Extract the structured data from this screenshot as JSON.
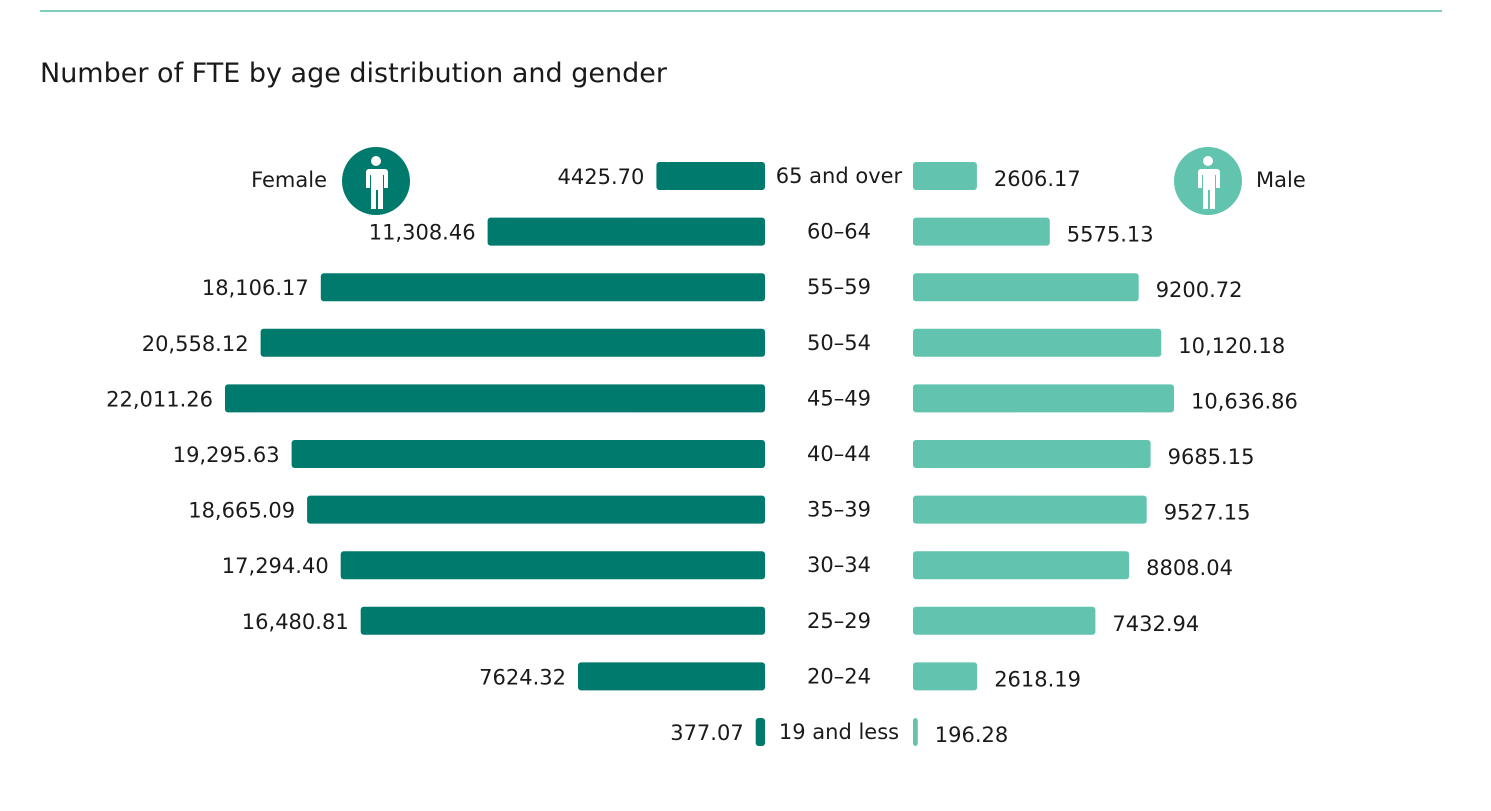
{
  "chart_data": {
    "type": "bar",
    "orientation": "horizontal-butterfly",
    "title": "Number of FTE by age distribution and gender",
    "categories": [
      "65 and over",
      "60–64",
      "55–59",
      "50–54",
      "45–49",
      "40–44",
      "35–39",
      "30–34",
      "25–29",
      "20–24",
      "19 and less"
    ],
    "series": [
      {
        "name": "Female",
        "side": "left",
        "values": [
          4425.7,
          11308.46,
          18106.17,
          20558.12,
          22011.26,
          19295.63,
          18665.09,
          17294.4,
          16480.81,
          7624.32,
          377.07
        ],
        "value_labels": [
          "4425.70",
          "11,308.46",
          "18,106.17",
          "20,558.12",
          "22,011.26",
          "19,295.63",
          "18,665.09",
          "17,294.40",
          "16,480.81",
          "7624.32",
          "377.07"
        ]
      },
      {
        "name": "Male",
        "side": "right",
        "values": [
          2606.17,
          5575.13,
          9200.72,
          10120.18,
          10636.86,
          9685.15,
          9527.15,
          8808.04,
          7432.94,
          2618.19,
          196.28
        ],
        "value_labels": [
          "2606.17",
          "5575.13",
          "9200.72",
          "10,120.18",
          "10,636.86",
          "9685.15",
          "9527.15",
          "8808.04",
          "7432.94",
          "2618.19",
          "196.28"
        ]
      }
    ],
    "xlabel": "",
    "ylabel": "",
    "xlim": [
      0,
      22011.26
    ],
    "grid": false,
    "legend": "icons beside top row",
    "icons": {
      "female": "person-icon",
      "male": "person-icon"
    }
  },
  "colors": {
    "female": "#007a6c",
    "male": "#62c4ae",
    "rule": "#7fcdbb",
    "text": "#1a1a1a"
  }
}
